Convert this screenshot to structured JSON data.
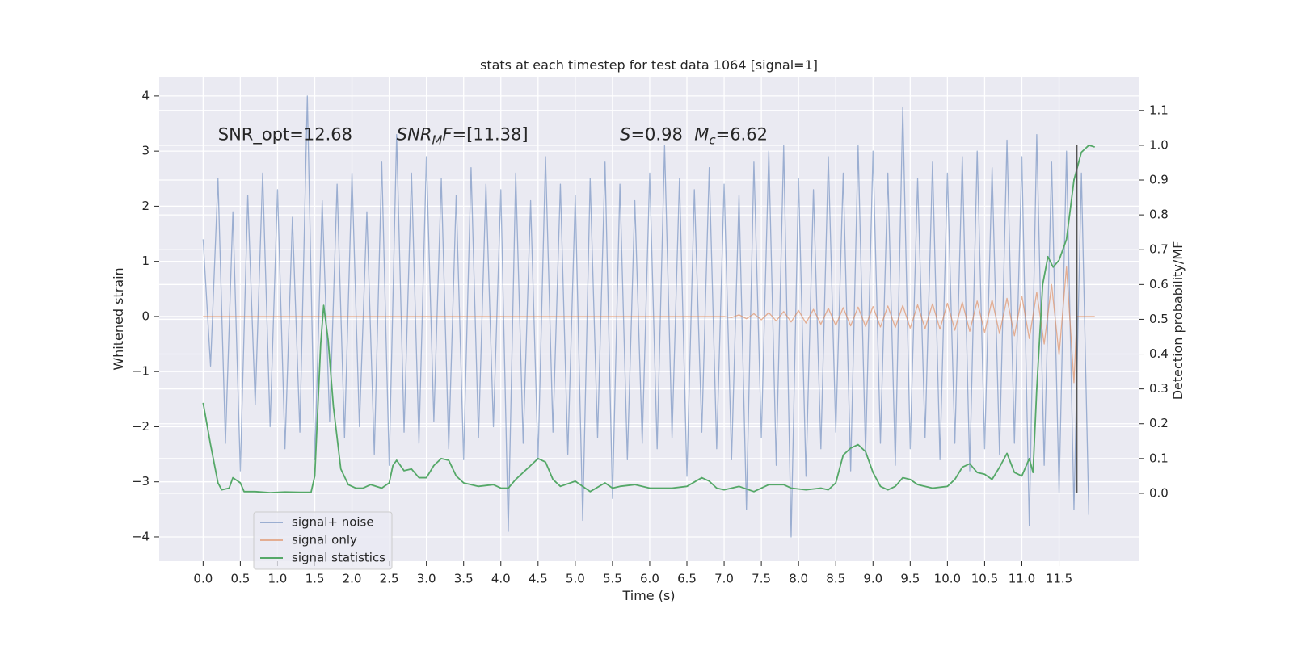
{
  "chart_data": {
    "type": "line",
    "title": "stats at each timestep for test data 1064 [signal=1]",
    "xlabel": "Time (s)",
    "ylabel": "Whitened strain",
    "y2label": "Detection probability/MF",
    "xlim": [
      -0.59,
      12.58
    ],
    "ylim": [
      -4.44,
      4.35
    ],
    "y2lim": [
      -0.195,
      1.197
    ],
    "xticks": [
      {
        "value": 0,
        "label": "0.0"
      },
      0.5,
      {
        "value": 1,
        "label": "1.0"
      },
      1.5,
      {
        "value": 2,
        "label": "2.0"
      },
      2.5,
      {
        "value": 3,
        "label": "3.0"
      },
      3.5,
      {
        "value": 4,
        "label": "4.0"
      },
      4.5,
      {
        "value": 5,
        "label": "5.0"
      },
      5.5,
      {
        "value": 6,
        "label": "6.0"
      },
      6.5,
      {
        "value": 7,
        "label": "7.0"
      },
      7.5,
      {
        "value": 8,
        "label": "8.0"
      },
      8.5,
      {
        "value": 9,
        "label": "9.0"
      },
      9.5,
      {
        "value": 10,
        "label": "10.0"
      },
      10.5,
      {
        "value": 11,
        "label": "11.0"
      },
      11.5
    ],
    "yticks": [
      {
        "value": -4,
        "label": "−4"
      },
      {
        "value": -3,
        "label": "−3"
      },
      {
        "value": -2,
        "label": "−2"
      },
      {
        "value": -1,
        "label": "−1"
      },
      0,
      1,
      2,
      3,
      4
    ],
    "y2ticks": [
      {
        "value": 0,
        "label": "0.0"
      },
      0.1,
      0.2,
      0.3,
      0.4,
      0.5,
      0.6,
      0.7,
      0.8,
      0.9,
      {
        "value": 1,
        "label": "1.0"
      },
      1.1
    ],
    "grid": true,
    "legend": "lower left",
    "series": [
      {
        "name": "signal+ noise",
        "color": "#4c72b0",
        "opacity": 0.5,
        "x": [
          0.0,
          0.1,
          0.2,
          0.3,
          0.4,
          0.5,
          0.6,
          0.7,
          0.8,
          0.9,
          1.0,
          1.1,
          1.2,
          1.3,
          1.4,
          1.5,
          1.6,
          1.7,
          1.8,
          1.9,
          2.0,
          2.1,
          2.2,
          2.3,
          2.4,
          2.5,
          2.6,
          2.7,
          2.8,
          2.9,
          3.0,
          3.1,
          3.2,
          3.3,
          3.4,
          3.5,
          3.6,
          3.7,
          3.8,
          3.9,
          4.0,
          4.1,
          4.2,
          4.3,
          4.4,
          4.5,
          4.6,
          4.7,
          4.8,
          4.9,
          5.0,
          5.1,
          5.2,
          5.3,
          5.4,
          5.5,
          5.6,
          5.7,
          5.8,
          5.9,
          6.0,
          6.1,
          6.2,
          6.3,
          6.4,
          6.5,
          6.6,
          6.7,
          6.8,
          6.9,
          7.0,
          7.1,
          7.2,
          7.3,
          7.4,
          7.5,
          7.6,
          7.7,
          7.8,
          7.9,
          8.0,
          8.1,
          8.2,
          8.3,
          8.4,
          8.5,
          8.6,
          8.7,
          8.8,
          8.9,
          9.0,
          9.1,
          9.2,
          9.3,
          9.4,
          9.5,
          9.6,
          9.7,
          9.8,
          9.9,
          10.0,
          10.1,
          10.2,
          10.3,
          10.4,
          10.5,
          10.6,
          10.7,
          10.8,
          10.9,
          11.0,
          11.1,
          11.2,
          11.3,
          11.4,
          11.5,
          11.6,
          11.7,
          11.8,
          11.9
        ],
        "values": [
          1.4,
          -0.9,
          2.5,
          -2.3,
          1.9,
          -2.8,
          2.2,
          -1.6,
          2.6,
          -2.0,
          2.3,
          -2.4,
          1.8,
          -2.1,
          4.0,
          -2.6,
          2.1,
          -1.9,
          2.4,
          -2.2,
          2.6,
          -2.0,
          1.9,
          -2.5,
          2.8,
          -2.7,
          3.3,
          -2.1,
          2.6,
          -2.3,
          2.9,
          -1.9,
          2.5,
          -2.4,
          2.2,
          -2.6,
          2.7,
          -2.2,
          2.4,
          -2.0,
          2.3,
          -3.9,
          2.6,
          -2.3,
          2.1,
          -2.6,
          2.9,
          -2.1,
          2.4,
          -2.5,
          2.2,
          -3.7,
          2.5,
          -2.2,
          2.8,
          -3.3,
          2.4,
          -2.6,
          2.1,
          -2.3,
          2.6,
          -2.4,
          3.1,
          -2.2,
          2.5,
          -2.9,
          2.3,
          -2.1,
          2.7,
          -2.4,
          2.4,
          -2.6,
          2.2,
          -3.5,
          2.8,
          -2.2,
          3.0,
          -2.7,
          3.1,
          -4.0,
          2.5,
          -2.9,
          2.3,
          -2.4,
          2.9,
          -2.1,
          2.6,
          -2.8,
          3.1,
          -2.5,
          3.0,
          -2.3,
          2.6,
          -2.7,
          3.8,
          -2.4,
          2.5,
          -2.2,
          2.8,
          -2.6,
          2.6,
          -2.3,
          2.9,
          -2.8,
          3.0,
          -2.4,
          2.7,
          -2.5,
          3.2,
          -2.3,
          2.9,
          -3.8,
          3.3,
          -2.7,
          2.8,
          -3.2,
          3.0,
          -3.5,
          2.6,
          -3.6
        ]
      },
      {
        "name": "signal only",
        "color": "#dd8452",
        "opacity": 0.6,
        "x": [
          0.0,
          7.0,
          7.1,
          7.2,
          7.3,
          7.4,
          7.5,
          7.6,
          7.7,
          7.8,
          7.9,
          8.0,
          8.1,
          8.2,
          8.3,
          8.4,
          8.5,
          8.6,
          8.7,
          8.8,
          8.9,
          9.0,
          9.1,
          9.2,
          9.3,
          9.4,
          9.5,
          9.6,
          9.7,
          9.8,
          9.9,
          10.0,
          10.1,
          10.2,
          10.3,
          10.4,
          10.5,
          10.6,
          10.7,
          10.8,
          10.9,
          11.0,
          11.1,
          11.2,
          11.3,
          11.4,
          11.5,
          11.6,
          11.7,
          11.74,
          11.98
        ],
        "values": [
          0,
          0,
          -0.02,
          0.03,
          -0.04,
          0.05,
          -0.06,
          0.07,
          -0.08,
          0.09,
          -0.1,
          0.11,
          -0.12,
          0.13,
          -0.14,
          0.15,
          -0.16,
          0.16,
          -0.17,
          0.17,
          -0.18,
          0.18,
          -0.19,
          0.19,
          -0.2,
          0.2,
          -0.21,
          0.21,
          -0.22,
          0.23,
          -0.23,
          0.24,
          -0.25,
          0.26,
          -0.27,
          0.28,
          -0.29,
          0.3,
          -0.31,
          0.33,
          -0.35,
          0.37,
          -0.4,
          0.44,
          -0.5,
          0.58,
          -0.7,
          0.9,
          -1.2,
          0,
          0
        ]
      },
      {
        "name": "signal statistics",
        "color": "#55a868",
        "axis": "y2",
        "opacity": 1,
        "x": [
          0.0,
          0.1,
          0.2,
          0.25,
          0.35,
          0.4,
          0.5,
          0.55,
          0.7,
          0.9,
          1.1,
          1.3,
          1.45,
          1.5,
          1.58,
          1.62,
          1.68,
          1.75,
          1.85,
          1.95,
          2.05,
          2.15,
          2.25,
          2.4,
          2.5,
          2.55,
          2.6,
          2.7,
          2.8,
          2.9,
          3.0,
          3.1,
          3.2,
          3.3,
          3.4,
          3.5,
          3.7,
          3.9,
          4.0,
          4.1,
          4.2,
          4.4,
          4.5,
          4.6,
          4.7,
          4.8,
          5.0,
          5.1,
          5.2,
          5.4,
          5.5,
          5.6,
          5.8,
          6.0,
          6.3,
          6.5,
          6.7,
          6.8,
          6.9,
          7.0,
          7.2,
          7.4,
          7.6,
          7.8,
          7.9,
          8.1,
          8.3,
          8.4,
          8.5,
          8.6,
          8.7,
          8.8,
          8.9,
          9.0,
          9.1,
          9.2,
          9.3,
          9.4,
          9.5,
          9.6,
          9.8,
          10.0,
          10.1,
          10.2,
          10.3,
          10.4,
          10.5,
          10.6,
          10.7,
          10.8,
          10.9,
          11.0,
          11.1,
          11.15,
          11.2,
          11.28,
          11.35,
          11.42,
          11.5,
          11.6,
          11.7,
          11.8,
          11.9,
          11.98
        ],
        "values": [
          0.26,
          0.14,
          0.03,
          0.01,
          0.015,
          0.045,
          0.03,
          0.005,
          0.005,
          0.002,
          0.004,
          0.003,
          0.003,
          0.05,
          0.43,
          0.54,
          0.44,
          0.25,
          0.07,
          0.025,
          0.015,
          0.015,
          0.025,
          0.015,
          0.03,
          0.08,
          0.095,
          0.065,
          0.07,
          0.045,
          0.045,
          0.08,
          0.1,
          0.095,
          0.05,
          0.03,
          0.02,
          0.025,
          0.015,
          0.015,
          0.04,
          0.08,
          0.1,
          0.09,
          0.04,
          0.02,
          0.035,
          0.02,
          0.005,
          0.03,
          0.015,
          0.02,
          0.025,
          0.015,
          0.015,
          0.02,
          0.045,
          0.035,
          0.015,
          0.01,
          0.02,
          0.005,
          0.025,
          0.025,
          0.015,
          0.01,
          0.015,
          0.01,
          0.03,
          0.11,
          0.13,
          0.14,
          0.12,
          0.06,
          0.02,
          0.01,
          0.02,
          0.045,
          0.04,
          0.025,
          0.015,
          0.02,
          0.04,
          0.075,
          0.085,
          0.06,
          0.055,
          0.04,
          0.075,
          0.115,
          0.06,
          0.05,
          0.1,
          0.06,
          0.3,
          0.6,
          0.68,
          0.65,
          0.67,
          0.73,
          0.9,
          0.98,
          1.0,
          0.995
        ]
      }
    ],
    "vline": {
      "x": 11.74,
      "ymin": 0,
      "ymax": 1,
      "axis": "y2",
      "color": "#555555"
    },
    "annotations": [
      {
        "x": 0.2,
        "y": 3.2,
        "parts": [
          {
            "text": "SNR_opt=12.68"
          }
        ]
      },
      {
        "x": 2.6,
        "y": 3.2,
        "parts": [
          {
            "text": "SNR",
            "italic": true
          },
          {
            "text": "M",
            "italic": true,
            "sub": true
          },
          {
            "text": "F",
            "italic": true
          },
          {
            "text": "=[11.38]"
          }
        ]
      },
      {
        "x": 5.6,
        "y": 3.2,
        "parts": [
          {
            "text": "S",
            "italic": true
          },
          {
            "text": "=0.98"
          }
        ]
      },
      {
        "x": 6.6,
        "y": 3.2,
        "parts": [
          {
            "text": "M",
            "italic": true
          },
          {
            "text": "c",
            "italic": true,
            "sub": true
          },
          {
            "text": "=6.62"
          }
        ]
      }
    ]
  }
}
